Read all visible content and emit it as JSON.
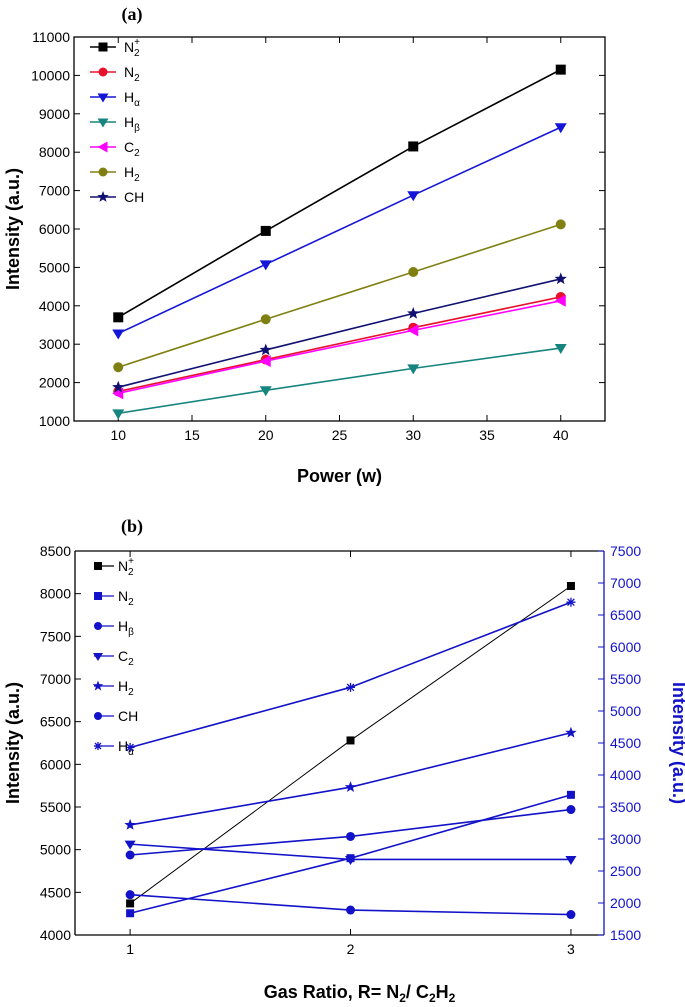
{
  "chart_data": [
    {
      "type": "line",
      "panel_label": "(a)",
      "xlabel": "Power (w)",
      "ylabel": "Intensity (a.u.)",
      "x": [
        10,
        20,
        30,
        40
      ],
      "xlim": [
        7,
        43
      ],
      "xticks": [
        "10",
        "15",
        "20",
        "25",
        "30",
        "35",
        "40"
      ],
      "ylim": [
        1000,
        11000
      ],
      "yticks": [
        "1000",
        "2000",
        "3000",
        "4000",
        "5000",
        "6000",
        "7000",
        "8000",
        "9000",
        "10000",
        "11000"
      ],
      "legend_position": "top-left",
      "series": [
        {
          "name": "N2+",
          "label_main": "N",
          "label_sub": "2",
          "label_sup": "+",
          "marker": "square",
          "color": "#000000",
          "values": [
            3700,
            5950,
            8150,
            10150
          ]
        },
        {
          "name": "N2",
          "label_main": "N",
          "label_sub": "2",
          "marker": "circle",
          "color": "#e8112d",
          "values": [
            1770,
            2600,
            3430,
            4230
          ]
        },
        {
          "name": "Hα",
          "label_main": "H",
          "label_sub": "α",
          "marker": "triangle-down",
          "color": "#1515d8",
          "values": [
            3280,
            5080,
            6880,
            8650
          ]
        },
        {
          "name": "Hβ",
          "label_main": "H",
          "label_sub": "β",
          "marker": "triangle-down",
          "color": "#17857f",
          "values": [
            1200,
            1800,
            2370,
            2900
          ]
        },
        {
          "name": "C2",
          "label_main": "C",
          "label_sub": "2",
          "marker": "triangle-left",
          "color": "#ff00ff",
          "values": [
            1720,
            2560,
            3360,
            4130
          ]
        },
        {
          "name": "H2",
          "label_main": "H",
          "label_sub": "2",
          "marker": "circle",
          "color": "#808012",
          "values": [
            2400,
            3650,
            4880,
            6120
          ]
        },
        {
          "name": "CH",
          "label_main": "CH",
          "marker": "star",
          "color": "#101070",
          "values": [
            1880,
            2850,
            3800,
            4700
          ]
        }
      ]
    },
    {
      "type": "line",
      "panel_label": "(b)",
      "xlabel_parts": [
        "Gas Ratio, R= N",
        "2",
        "/ C",
        "2",
        "H",
        "2"
      ],
      "ylabel": "Intensity (a.u.)",
      "ylabel_right": "Intensity (a.u.)",
      "x": [
        1,
        2,
        3
      ],
      "xlim": [
        0.75,
        3.15
      ],
      "xticks": [
        "1",
        "2",
        "3"
      ],
      "ylim": [
        4000,
        8500
      ],
      "yticks": [
        "4000",
        "4500",
        "5000",
        "5500",
        "6000",
        "6500",
        "7000",
        "7500",
        "8000",
        "8500"
      ],
      "ylim_right": [
        1500,
        7500
      ],
      "yticks_right": [
        "1500",
        "2000",
        "2500",
        "3000",
        "3500",
        "4000",
        "4500",
        "5000",
        "5500",
        "6000",
        "6500",
        "7000",
        "7500"
      ],
      "right_axis_color": "#1212c8",
      "legend_position": "top-left",
      "series": [
        {
          "name": "N2+",
          "label_main": "N",
          "label_sub": "2",
          "label_sup": "+",
          "marker": "square",
          "color": "#000000",
          "axis": "left",
          "values": [
            4370,
            6280,
            8090
          ]
        },
        {
          "name": "N2",
          "label_main": "N",
          "label_sub": "2",
          "marker": "square",
          "color": "#1212c8",
          "axis": "right",
          "values": [
            1840,
            2700,
            3690
          ]
        },
        {
          "name": "Hβ",
          "label_main": "H",
          "label_sub": "β",
          "marker": "circle",
          "color": "#1212c8",
          "axis": "right",
          "values": [
            2130,
            1890,
            1820
          ]
        },
        {
          "name": "C2",
          "label_main": "C",
          "label_sub": "2",
          "marker": "triangle-down",
          "color": "#1212c8",
          "axis": "right",
          "values": [
            2920,
            2680,
            2680
          ]
        },
        {
          "name": "H2",
          "label_main": "H",
          "label_sub": "2",
          "marker": "star",
          "color": "#1212c8",
          "axis": "right",
          "values": [
            3220,
            3810,
            4660
          ]
        },
        {
          "name": "CH",
          "label_main": "CH",
          "marker": "circle",
          "color": "#1212c8",
          "axis": "right",
          "values": [
            2750,
            3040,
            3460
          ]
        },
        {
          "name": "Hα",
          "label_main": "H",
          "label_sub": "α",
          "marker": "asterisk",
          "color": "#1212c8",
          "axis": "right",
          "values": [
            4430,
            5370,
            6700
          ]
        }
      ]
    }
  ]
}
